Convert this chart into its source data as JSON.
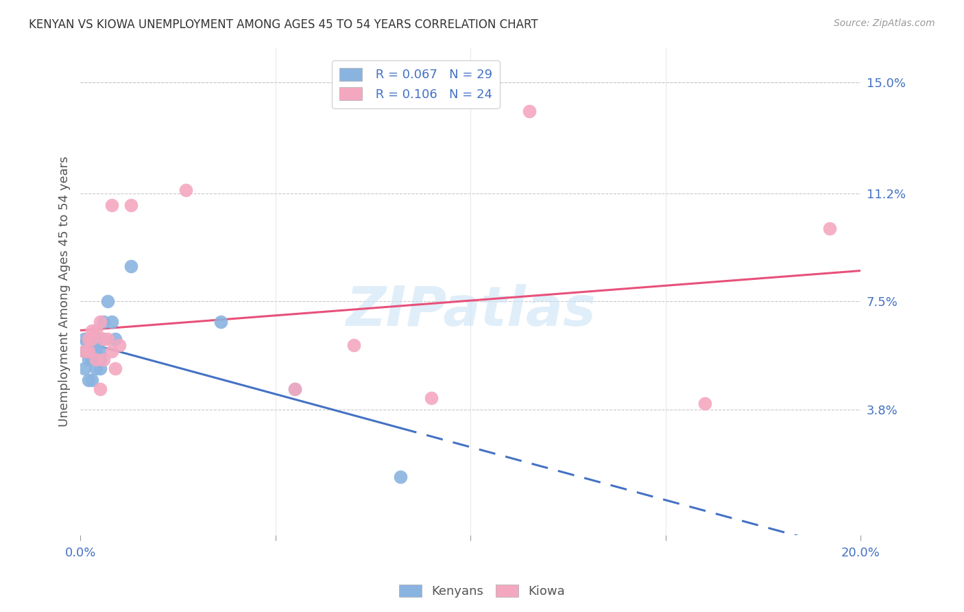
{
  "title": "KENYAN VS KIOWA UNEMPLOYMENT AMONG AGES 45 TO 54 YEARS CORRELATION CHART",
  "source": "Source: ZipAtlas.com",
  "ylabel": "Unemployment Among Ages 45 to 54 years",
  "xlim": [
    0.0,
    0.2
  ],
  "ylim": [
    -0.005,
    0.162
  ],
  "ytick_positions": [
    0.038,
    0.075,
    0.112,
    0.15
  ],
  "ytick_labels": [
    "3.8%",
    "7.5%",
    "11.2%",
    "15.0%"
  ],
  "right_ytick_color": "#4472c4",
  "watermark_text": "ZIPatlas",
  "kenyans_x": [
    0.001,
    0.001,
    0.001,
    0.002,
    0.002,
    0.002,
    0.002,
    0.003,
    0.003,
    0.003,
    0.003,
    0.003,
    0.004,
    0.004,
    0.004,
    0.004,
    0.005,
    0.005,
    0.005,
    0.005,
    0.006,
    0.006,
    0.007,
    0.008,
    0.009,
    0.013,
    0.036,
    0.055,
    0.082
  ],
  "kenyans_y": [
    0.052,
    0.058,
    0.062,
    0.048,
    0.055,
    0.058,
    0.062,
    0.048,
    0.055,
    0.058,
    0.062,
    0.055,
    0.052,
    0.058,
    0.062,
    0.055,
    0.052,
    0.058,
    0.055,
    0.062,
    0.068,
    0.062,
    0.075,
    0.068,
    0.062,
    0.087,
    0.068,
    0.045,
    0.015
  ],
  "kiowa_x": [
    0.001,
    0.002,
    0.002,
    0.003,
    0.003,
    0.004,
    0.004,
    0.005,
    0.005,
    0.006,
    0.006,
    0.007,
    0.008,
    0.008,
    0.009,
    0.01,
    0.013,
    0.027,
    0.055,
    0.07,
    0.09,
    0.115,
    0.16,
    0.192
  ],
  "kiowa_y": [
    0.058,
    0.058,
    0.062,
    0.062,
    0.065,
    0.055,
    0.065,
    0.045,
    0.068,
    0.055,
    0.062,
    0.062,
    0.058,
    0.108,
    0.052,
    0.06,
    0.108,
    0.113,
    0.045,
    0.06,
    0.042,
    0.14,
    0.04,
    0.1
  ],
  "blue_scatter_color": "#8ab4e0",
  "pink_scatter_color": "#f4a8c0",
  "blue_line_color": "#4472c4",
  "pink_line_color": "#e8507a",
  "background_color": "#ffffff",
  "grid_color": "#c8c8c8",
  "legend_color1": "#8ab4e0",
  "legend_color2": "#f4a8c0",
  "legend_text1": "R = 0.067   N = 29",
  "legend_text2": "R = 0.106   N = 24"
}
